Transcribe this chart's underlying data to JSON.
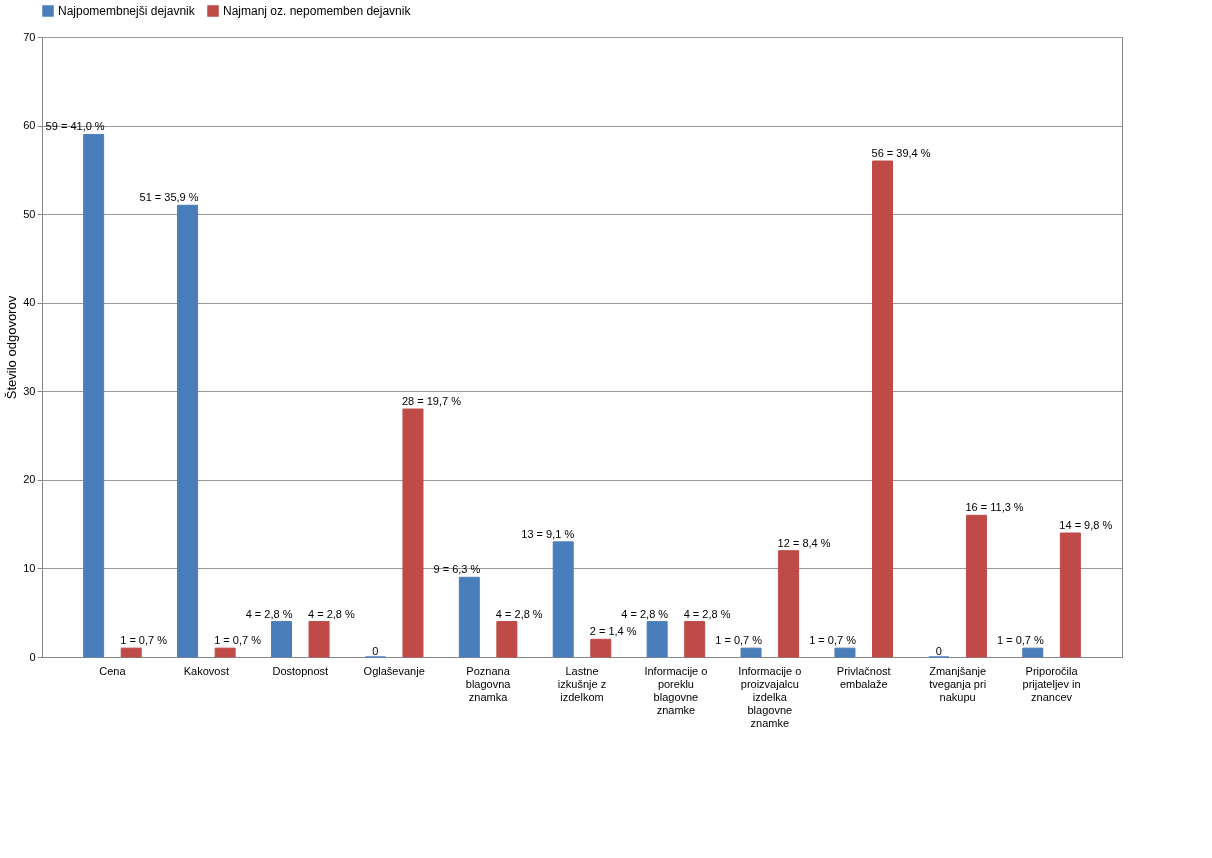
{
  "chart_data": {
    "type": "bar",
    "ylabel": "Število odgovorov",
    "categories": [
      "Cena",
      "Kakovost",
      "Dostopnost",
      "Oglaševanje",
      "Poznana blagovna znamka",
      "Lastne izkušnje z izdelkom",
      "Informacije o poreklu blagovne znamke",
      "Informacije o proizvajalcu izdelka blagovne znamke",
      "Privlačnost embalaže",
      "Zmanjšanje tveganja pri nakupu",
      "Priporočila prijateljev in znancev"
    ],
    "series": [
      {
        "name": "Najpomembnejši dejavnik",
        "color": "#4a7ebb",
        "values": [
          59,
          51,
          4,
          0,
          9,
          13,
          4,
          1,
          1,
          0,
          1
        ],
        "value_labels": [
          "59 = 41,0 %",
          "51 = 35,9 %",
          "4 = 2,8 %",
          "0",
          "9 = 6,3 %",
          "13 = 9,1 %",
          "4 = 2,8 %",
          "1 = 0,7 %",
          "1 = 0,7 %",
          "0",
          "1 = 0,7 %"
        ]
      },
      {
        "name": "Najmanj oz. nepomemben dejavnik",
        "color": "#be4b48",
        "values": [
          1,
          1,
          4,
          28,
          4,
          2,
          4,
          12,
          56,
          16,
          14
        ],
        "value_labels": [
          "1 = 0,7 %",
          "1 = 0,7 %",
          "4 = 2,8 %",
          "28 = 19,7 %",
          "4 = 2,8 %",
          "2 = 1,4 %",
          "4 = 2,8 %",
          "12 = 8,4 %",
          "56 = 39,4 %",
          "16 = 11,3 %",
          "14 = 9,8 %"
        ]
      }
    ],
    "ylim": [
      0,
      70
    ],
    "yticks": [
      0,
      10,
      20,
      30,
      40,
      50,
      60,
      70
    ],
    "grid": "y",
    "legend": "top"
  }
}
